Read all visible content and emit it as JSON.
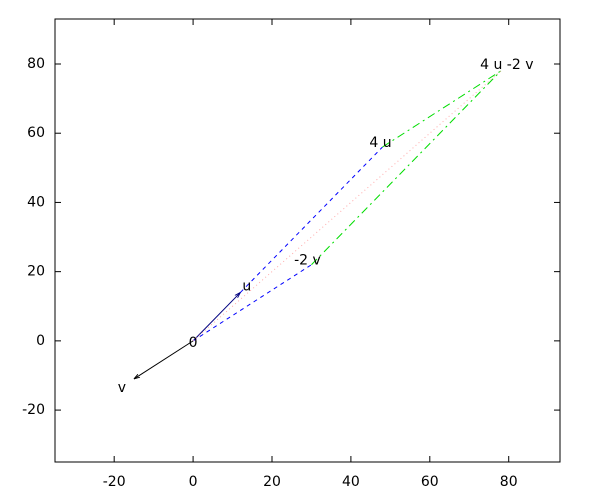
{
  "chart_data": {
    "type": "vector",
    "xlim": [
      -35,
      93
    ],
    "ylim": [
      -35,
      93
    ],
    "xticks": [
      -20,
      0,
      20,
      40,
      60,
      80
    ],
    "yticks": [
      -20,
      0,
      20,
      40,
      60,
      80
    ],
    "points": [
      {
        "label": "0",
        "x": 0,
        "y": 0
      },
      {
        "label": "u",
        "x": 12,
        "y": 14
      },
      {
        "label": "v",
        "x": -15,
        "y": -11
      },
      {
        "label": "4 u",
        "x": 48,
        "y": 56
      },
      {
        "label": "-2 v",
        "x": 30,
        "y": 22
      },
      {
        "label": "4 u -2 v",
        "x": 78,
        "y": 78
      }
    ],
    "segments": [
      {
        "x": [
          0,
          -15
        ],
        "y": [
          0,
          -11
        ],
        "color": "#000000",
        "style": "arrow"
      },
      {
        "x": [
          0,
          12
        ],
        "y": [
          0,
          14
        ],
        "color": "#000080",
        "style": "arrow"
      },
      {
        "x": [
          12,
          48
        ],
        "y": [
          14,
          56
        ],
        "color": "#0000ff",
        "style": "dashed"
      },
      {
        "x": [
          0,
          30
        ],
        "y": [
          0,
          22
        ],
        "color": "#0000ff",
        "style": "dashed"
      },
      {
        "x": [
          48,
          78
        ],
        "y": [
          56,
          78
        ],
        "color": "#00dd00",
        "style": "dashdot"
      },
      {
        "x": [
          30,
          78
        ],
        "y": [
          22,
          78
        ],
        "color": "#00dd00",
        "style": "dashdot"
      },
      {
        "x": [
          0,
          78
        ],
        "y": [
          0,
          78
        ],
        "color": "#ffaaaa",
        "style": "dotted"
      }
    ]
  }
}
